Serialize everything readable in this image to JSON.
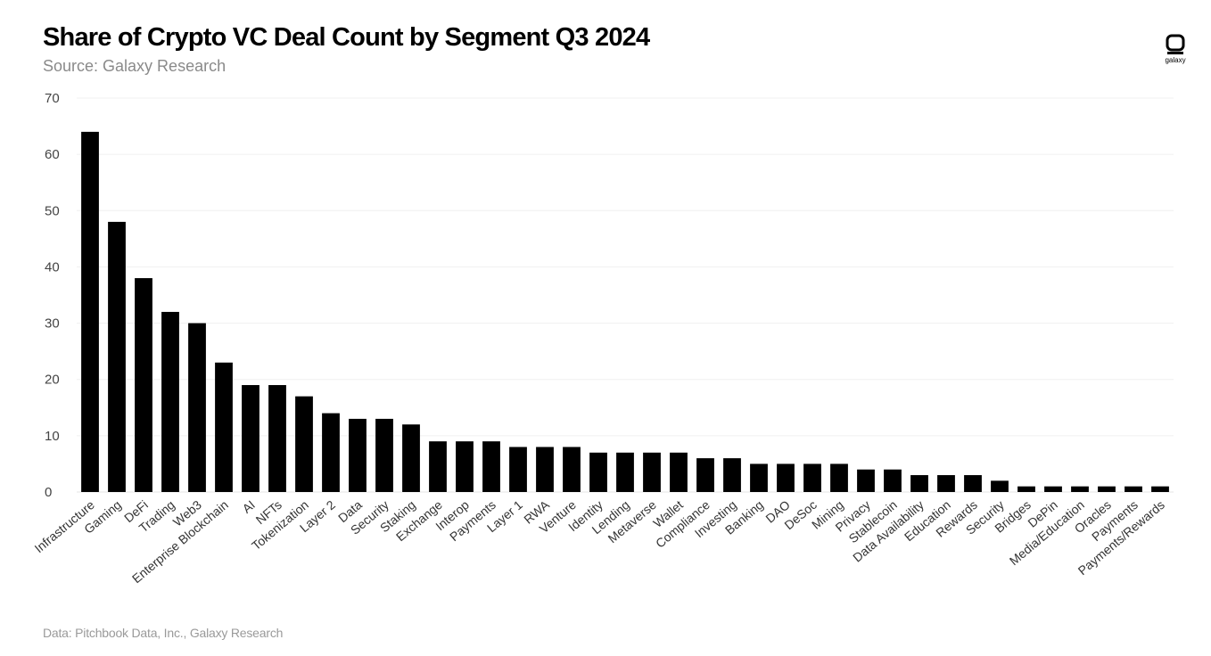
{
  "chart_data": {
    "type": "bar",
    "title": "Share of Crypto VC Deal Count by Segment Q3 2024",
    "subtitle": "Source: Galaxy Research",
    "footer": "Data: Pitchbook Data, Inc., Galaxy Research",
    "brand": "galaxy",
    "xlabel": "",
    "ylabel": "",
    "ylim": [
      0,
      70
    ],
    "yticks": [
      0,
      10,
      20,
      30,
      40,
      50,
      60,
      70
    ],
    "grid": true,
    "bar_color": "#000000",
    "categories": [
      "Infrastructure",
      "Gaming",
      "DeFi",
      "Trading",
      "Web3",
      "Enterprise Blockchain",
      "AI",
      "NFTs",
      "Tokenization",
      "Layer 2",
      "Data",
      "Security",
      "Staking",
      "Exchange",
      "Interop",
      "Payments",
      "Layer 1",
      "RWA",
      "Venture",
      "Identity",
      "Lending",
      "Metaverse",
      "Wallet",
      "Compliance",
      "Investing",
      "Banking",
      "DAO",
      "DeSoc",
      "Mining",
      "Privacy",
      "Stablecoin",
      "Data Availability",
      "Education",
      "Rewards",
      "Security",
      "Bridges",
      "DePin",
      "Media/Education",
      "Oracles",
      "Payments",
      "Payments/Rewards"
    ],
    "values": [
      64,
      48,
      38,
      32,
      30,
      23,
      19,
      19,
      17,
      14,
      13,
      13,
      12,
      9,
      9,
      9,
      8,
      8,
      8,
      7,
      7,
      7,
      7,
      6,
      6,
      5,
      5,
      5,
      5,
      4,
      4,
      3,
      3,
      3,
      2,
      1,
      1,
      1,
      1,
      1,
      1
    ]
  }
}
